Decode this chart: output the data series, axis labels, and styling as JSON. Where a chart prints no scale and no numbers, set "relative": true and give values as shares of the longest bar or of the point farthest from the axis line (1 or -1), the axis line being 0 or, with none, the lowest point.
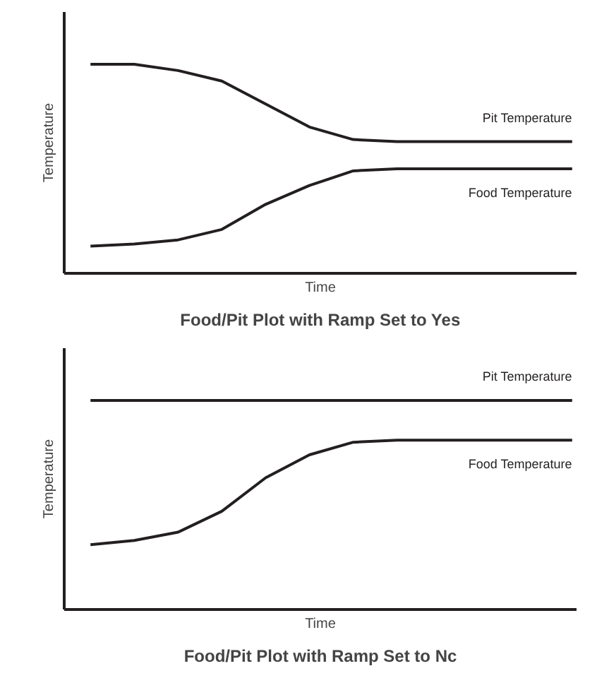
{
  "chart_data": [
    {
      "type": "line",
      "title": "Food/Pit Plot with Ramp Set to Yes",
      "xlabel": "Time",
      "ylabel": "Temperature",
      "relative": true,
      "tick_labels": false,
      "categories": [
        null,
        null,
        null,
        null,
        null,
        null,
        null,
        null,
        null,
        null,
        null,
        null
      ],
      "series": [
        {
          "name": "Pit Temperature",
          "color": "#231f20",
          "values": [
            1.0,
            1.0,
            0.97,
            0.92,
            0.81,
            0.7,
            0.64,
            0.63,
            0.63,
            0.63,
            0.63,
            0.63
          ]
        },
        {
          "name": "Food Temperature",
          "color": "#231f20",
          "values": [
            0.13,
            0.14,
            0.16,
            0.21,
            0.33,
            0.42,
            0.49,
            0.5,
            0.5,
            0.5,
            0.5,
            0.5
          ]
        }
      ]
    },
    {
      "type": "line",
      "title": "Food/Pit Plot with Ramp Set to Nc",
      "xlabel": "Time",
      "ylabel": "Temperature",
      "relative": true,
      "tick_labels": false,
      "categories": [
        null,
        null,
        null,
        null,
        null,
        null,
        null,
        null,
        null,
        null,
        null,
        null
      ],
      "series": [
        {
          "name": "Pit Temperature",
          "color": "#231f20",
          "values": [
            1.0,
            1.0,
            1.0,
            1.0,
            1.0,
            1.0,
            1.0,
            1.0,
            1.0,
            1.0,
            1.0,
            1.0
          ]
        },
        {
          "name": "Food Temperature",
          "color": "#231f20",
          "values": [
            0.31,
            0.33,
            0.37,
            0.47,
            0.63,
            0.74,
            0.8,
            0.81,
            0.81,
            0.81,
            0.81,
            0.81
          ]
        }
      ]
    }
  ]
}
